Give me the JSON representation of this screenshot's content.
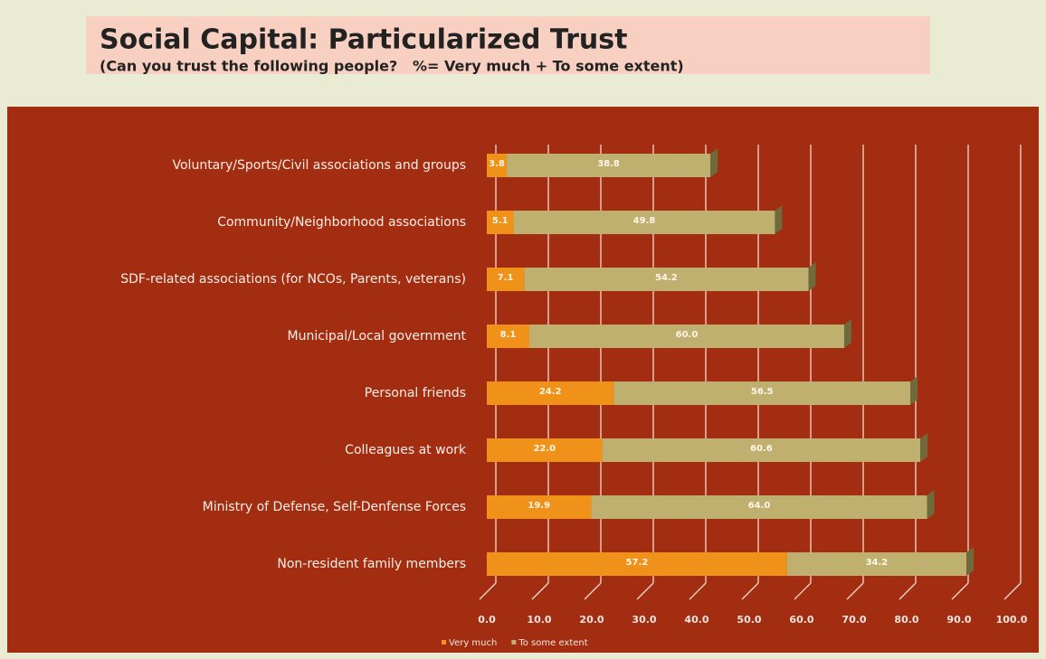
{
  "chart_data": {
    "type": "stacked-bar-horizontal",
    "title": "Social Capital: Particularized Trust",
    "subtitle": "(Can you trust the following people?   %= Very much + To some extent)",
    "categories": [
      "Voluntary/Sports/Civil associations and groups",
      "Community/Neighborhood associations",
      "SDF-related associations (for NCOs, Parents, veterans)",
      "Municipal/Local government",
      "Personal friends",
      "Colleagues at work",
      "Ministry of Defense, Self-Denfense Forces",
      "Non-resident family members"
    ],
    "series": [
      {
        "name": "Very much",
        "color": "#f0921a",
        "values": [
          3.8,
          5.1,
          7.1,
          8.1,
          24.2,
          22.0,
          19.9,
          57.2
        ],
        "value_labels": [
          "3.8",
          "5.1",
          "7.1",
          "8.1",
          "24.2",
          "22.0",
          "19.9",
          "57.2"
        ]
      },
      {
        "name": "To some extent",
        "color": "#bfb070",
        "values": [
          38.8,
          49.8,
          54.2,
          60.0,
          56.5,
          60.6,
          64.0,
          34.2
        ],
        "value_labels": [
          "38.8",
          "49.8",
          "54.2",
          "60.0",
          "56.5",
          "60.6",
          "64.0",
          "34.2"
        ]
      }
    ],
    "xlim": [
      0,
      100
    ],
    "xticks": [
      {
        "value": 0,
        "label": "0.0"
      },
      {
        "value": 10,
        "label": "10.0"
      },
      {
        "value": 20,
        "label": "20.0"
      },
      {
        "value": 30,
        "label": "30.0"
      },
      {
        "value": 40,
        "label": "40.0"
      },
      {
        "value": 50,
        "label": "50.0"
      },
      {
        "value": 60,
        "label": "60.0"
      },
      {
        "value": 70,
        "label": "70.0"
      },
      {
        "value": 80,
        "label": "80.0"
      },
      {
        "value": 90,
        "label": "90.0"
      },
      {
        "value": 100,
        "label": "100.0"
      }
    ],
    "grid": true,
    "legend": "bottom"
  }
}
